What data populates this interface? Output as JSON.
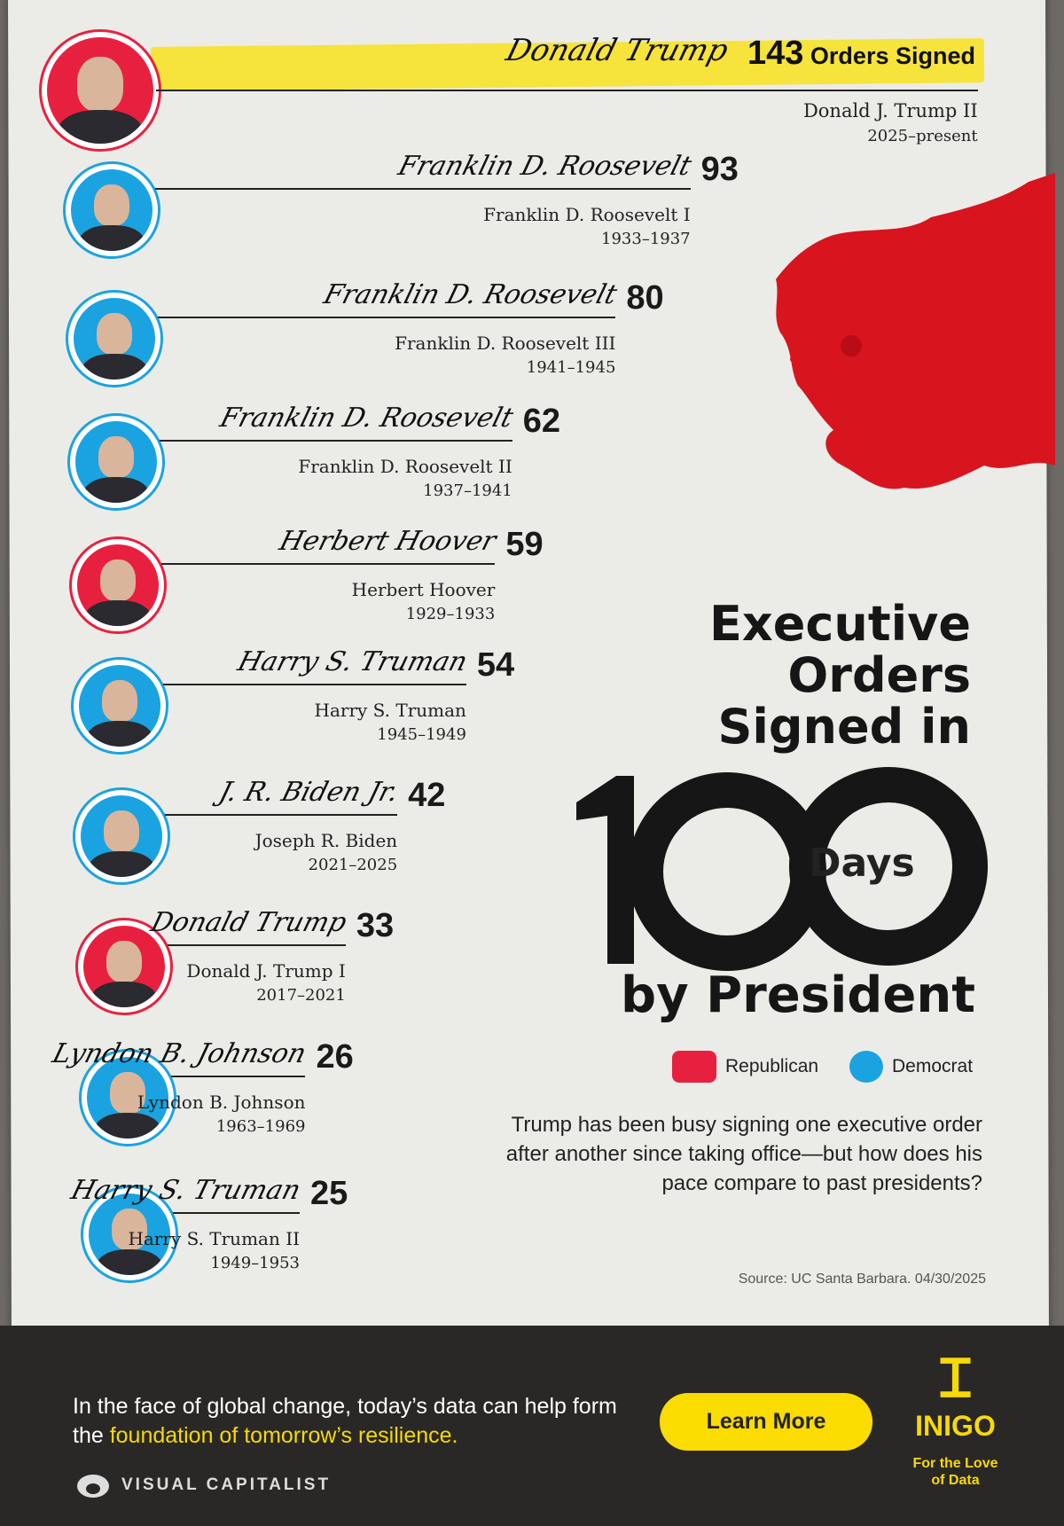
{
  "chart_data": {
    "type": "bar",
    "title": "Executive Orders Signed in 100 Days by President",
    "title_parts": {
      "line1": "Executive",
      "line2": "Orders",
      "line3": "Signed in",
      "big": "100",
      "days": "Days",
      "by": "by President"
    },
    "top_label_suffix": "Orders Signed",
    "presidents": [
      {
        "name": "Donald J. Trump II",
        "years": "2025–present",
        "value": 143,
        "party": "Republican",
        "signature": "Donald Trump"
      },
      {
        "name": "Franklin D. Roosevelt I",
        "years": "1933–1937",
        "value": 93,
        "party": "Democrat",
        "signature": "Franklin D. Roosevelt"
      },
      {
        "name": "Franklin D. Roosevelt III",
        "years": "1941–1945",
        "value": 80,
        "party": "Democrat",
        "signature": "Franklin D. Roosevelt"
      },
      {
        "name": "Franklin D. Roosevelt II",
        "years": "1937–1941",
        "value": 62,
        "party": "Democrat",
        "signature": "Franklin D. Roosevelt"
      },
      {
        "name": "Herbert Hoover",
        "years": "1929–1933",
        "value": 59,
        "party": "Republican",
        "signature": "Herbert Hoover"
      },
      {
        "name": "Harry S. Truman",
        "years": "1945–1949",
        "value": 54,
        "party": "Democrat",
        "signature": "Harry S. Truman"
      },
      {
        "name": "Joseph R. Biden",
        "years": "2021–2025",
        "value": 42,
        "party": "Democrat",
        "signature": "J. R. Biden Jr."
      },
      {
        "name": "Donald J. Trump I",
        "years": "2017–2021",
        "value": 33,
        "party": "Republican",
        "signature": "Donald Trump"
      },
      {
        "name": "Lyndon B. Johnson",
        "years": "1963–1969",
        "value": 26,
        "party": "Democrat",
        "signature": "Lyndon B. Johnson"
      },
      {
        "name": "Harry S. Truman II",
        "years": "1949–1953",
        "value": 25,
        "party": "Democrat",
        "signature": "Harry S. Truman"
      }
    ],
    "legend": [
      {
        "label": "Republican",
        "color": "#e8203f"
      },
      {
        "label": "Democrat",
        "color": "#1aa3e0"
      }
    ],
    "legend_placement": "right"
  },
  "description": "Trump has been busy signing one executive order after another since taking office—but how does his pace compare to past presidents?",
  "source": "Source: UC Santa Barbara. 04/30/2025",
  "footer": {
    "text_white": "In the face of global change, today’s data can help form the ",
    "text_yellow": "foundation of tomorrow’s resilience.",
    "button": "Learn More",
    "brand": "VISUAL CAPITALIST",
    "sponsor": "INIGO",
    "sponsor_tag": "For the Love of Data"
  },
  "colors": {
    "highlight": "#f6e33c",
    "accent": "#fbdc00"
  }
}
